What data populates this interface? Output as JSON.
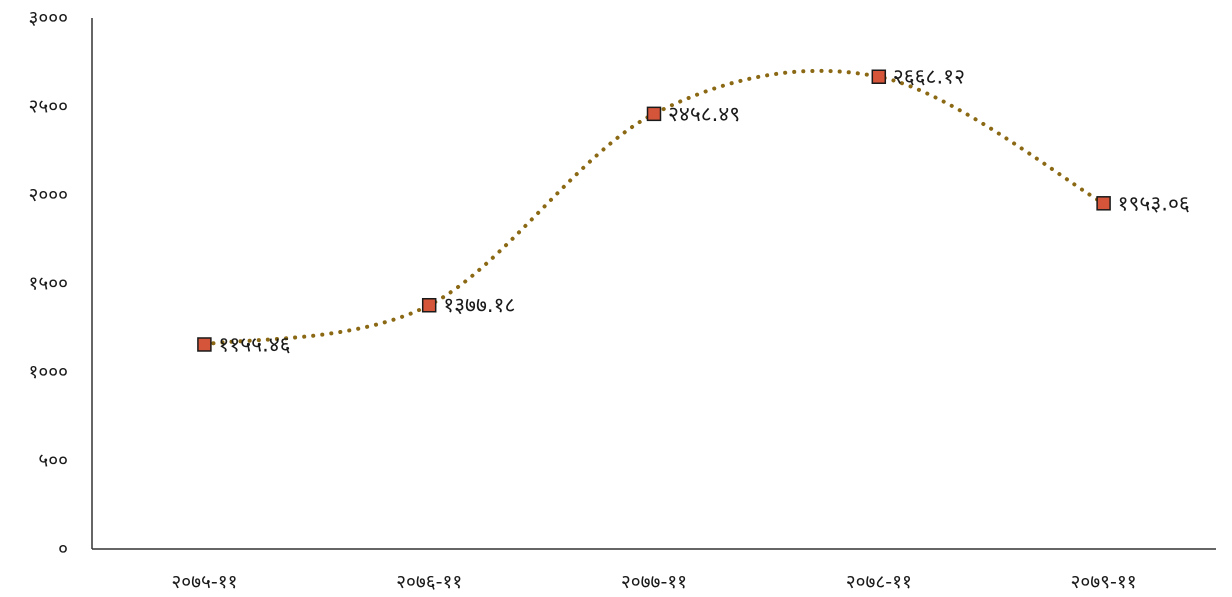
{
  "chart_data": {
    "type": "line",
    "categories": [
      "२०७५-११",
      "२०७६-११",
      "२०७७-११",
      "२०७८-११",
      "२०७९-११"
    ],
    "values": [
      1155.46,
      1377.18,
      2458.49,
      2668.12,
      1953.06
    ],
    "data_labels": [
      "११५५.४६",
      "१३७७.१८",
      "२४५८.४९",
      "२६६८.१२",
      "१९५३.०६"
    ],
    "y_ticks": [
      0,
      500,
      1000,
      1500,
      2000,
      2500,
      3000
    ],
    "y_tick_labels": [
      "०",
      "५००",
      "१०००",
      "१५००",
      "२०००",
      "२५००",
      "३०००"
    ],
    "ylim": [
      0,
      3000
    ],
    "title": "",
    "xlabel": "",
    "ylabel": "",
    "grid": false,
    "legend": "none",
    "smooth": true,
    "line_style": "dotted",
    "line_color": "#8B6914",
    "marker": "square",
    "marker_fill": "#D4553A",
    "marker_stroke": "#1a1a1a",
    "axis_color": "#333333"
  }
}
